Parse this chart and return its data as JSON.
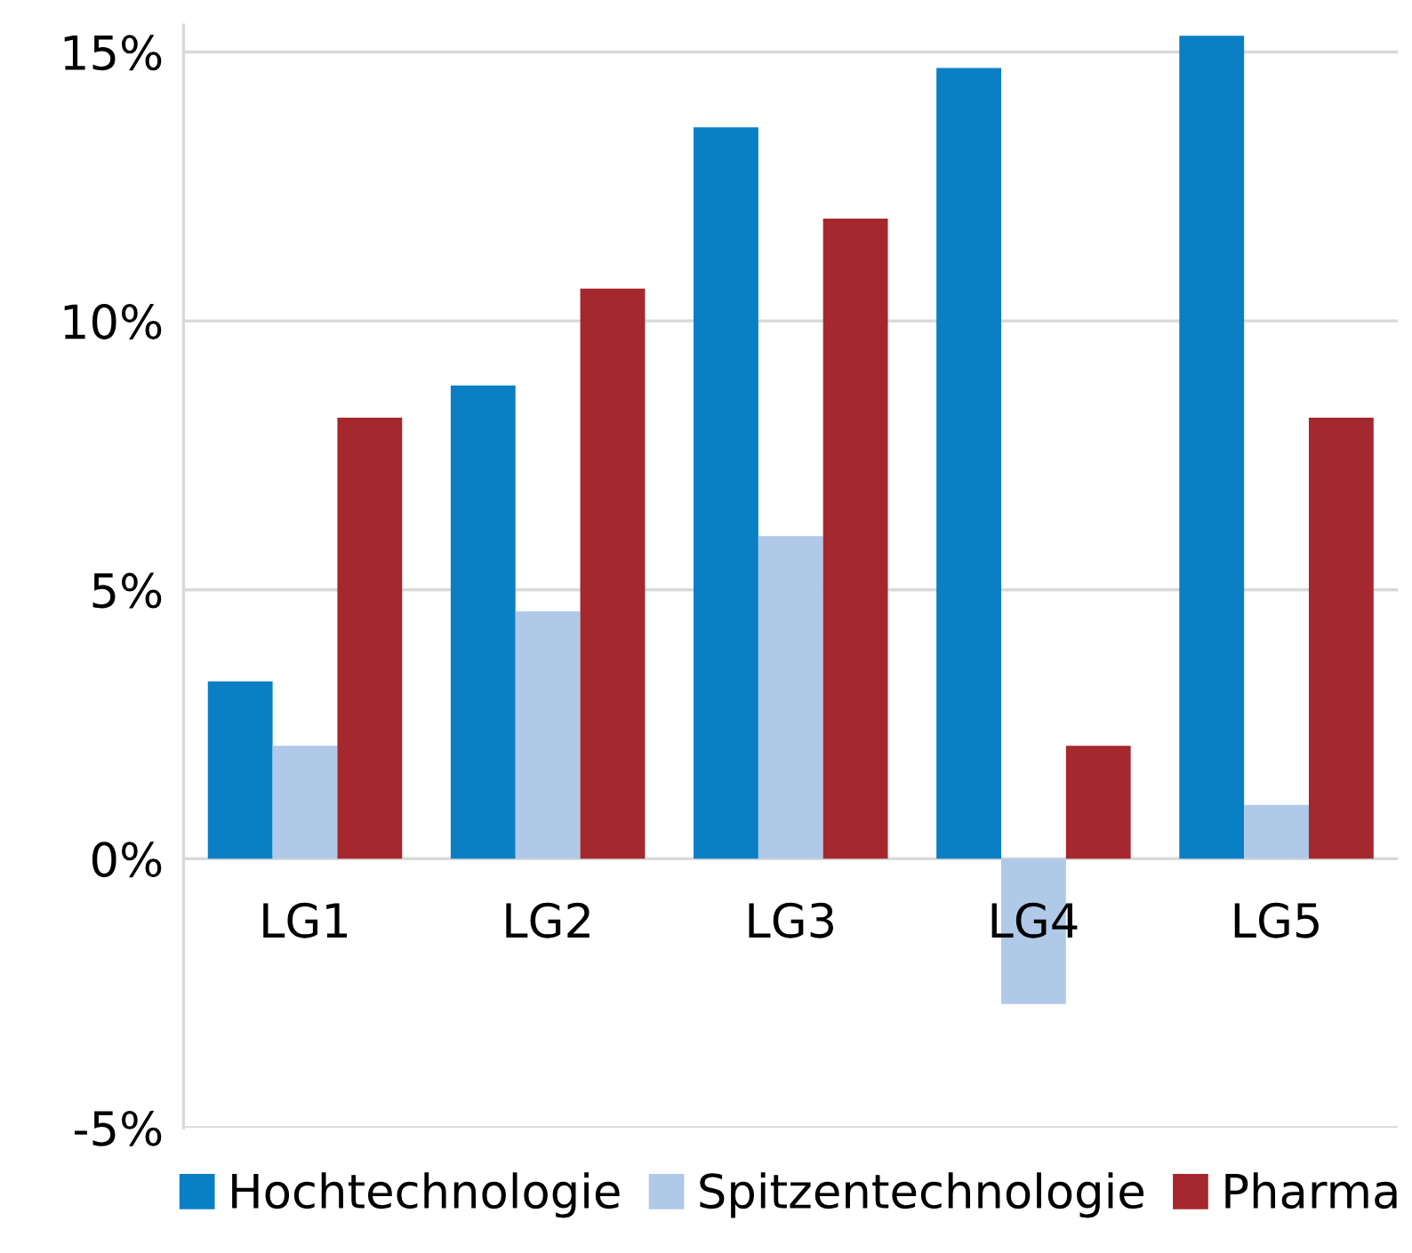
{
  "chart_data": {
    "type": "bar",
    "categories": [
      "LG1",
      "LG2",
      "LG3",
      "LG4",
      "LG5"
    ],
    "series": [
      {
        "name": "Hochtechnologie",
        "color": "#0a7fc4",
        "values": [
          3.3,
          8.8,
          13.6,
          14.7,
          15.3
        ]
      },
      {
        "name": "Spitzentechnologie",
        "color": "#b0c9e8",
        "values": [
          2.1,
          4.6,
          6.0,
          -2.7,
          1.0
        ]
      },
      {
        "name": "Pharma",
        "color": "#a4282d",
        "values": [
          8.2,
          10.6,
          11.9,
          2.1,
          8.2
        ]
      }
    ],
    "ylim": [
      -5,
      15.5
    ],
    "yticks": [
      {
        "value": -5,
        "label": "-5%"
      },
      {
        "value": 0,
        "label": "0%"
      },
      {
        "value": 5,
        "label": "5%"
      },
      {
        "value": 10,
        "label": "10%"
      },
      {
        "value": 15,
        "label": "15%"
      }
    ],
    "grid": "y",
    "legend": "bottom"
  }
}
